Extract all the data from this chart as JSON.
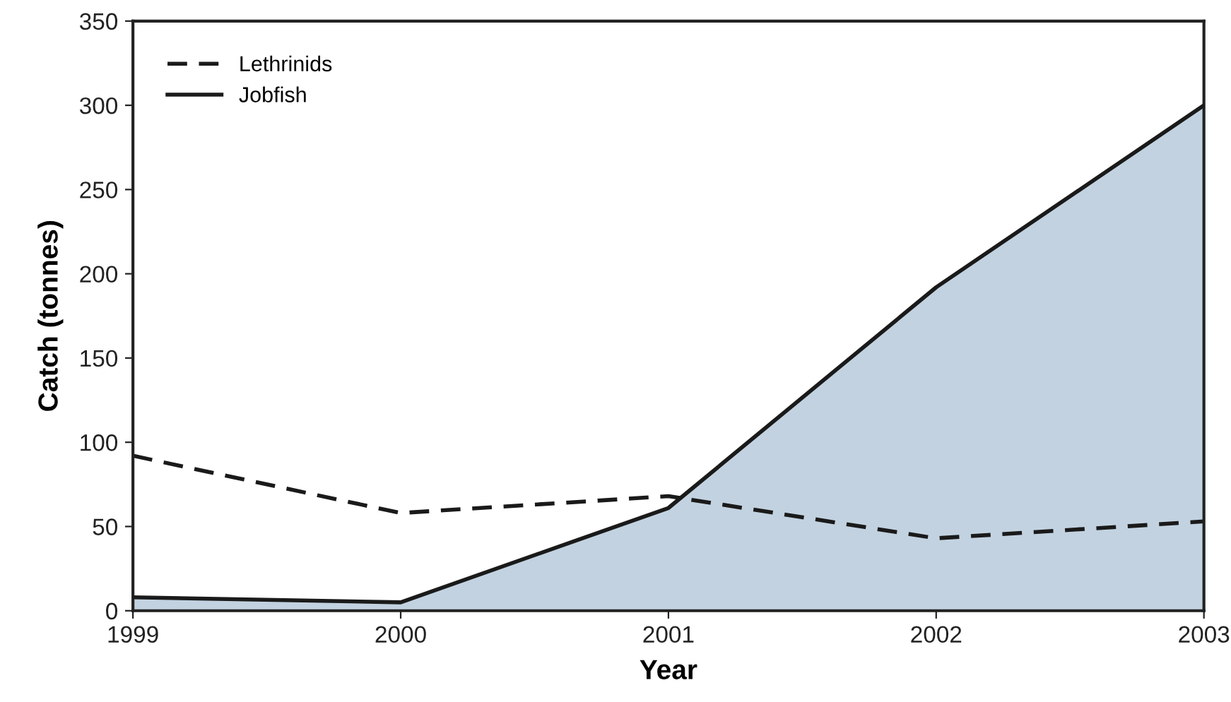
{
  "chart_data": {
    "type": "line",
    "xlabel": "Year",
    "ylabel": "Catch (tonnes)",
    "x": [
      1999,
      2000,
      2001,
      2002,
      2003
    ],
    "series": [
      {
        "name": "Lethrinids",
        "color": "#1a1a1a",
        "line_style": "dashed",
        "values": [
          92,
          58,
          68,
          43,
          53
        ]
      },
      {
        "name": "Jobfish",
        "type": "area",
        "color": "#c2d2e0",
        "line_style": "solid",
        "values": [
          8,
          5,
          61,
          192,
          300
        ]
      }
    ],
    "xlim": [
      1999,
      2003
    ],
    "xticks": [
      1999,
      2000,
      2001,
      2002,
      2003
    ],
    "ylim": [
      0,
      350
    ],
    "yticks": [
      0,
      50,
      100,
      150,
      200,
      250,
      300,
      350
    ],
    "grid": false,
    "legend": "top left",
    "marker": "none"
  }
}
